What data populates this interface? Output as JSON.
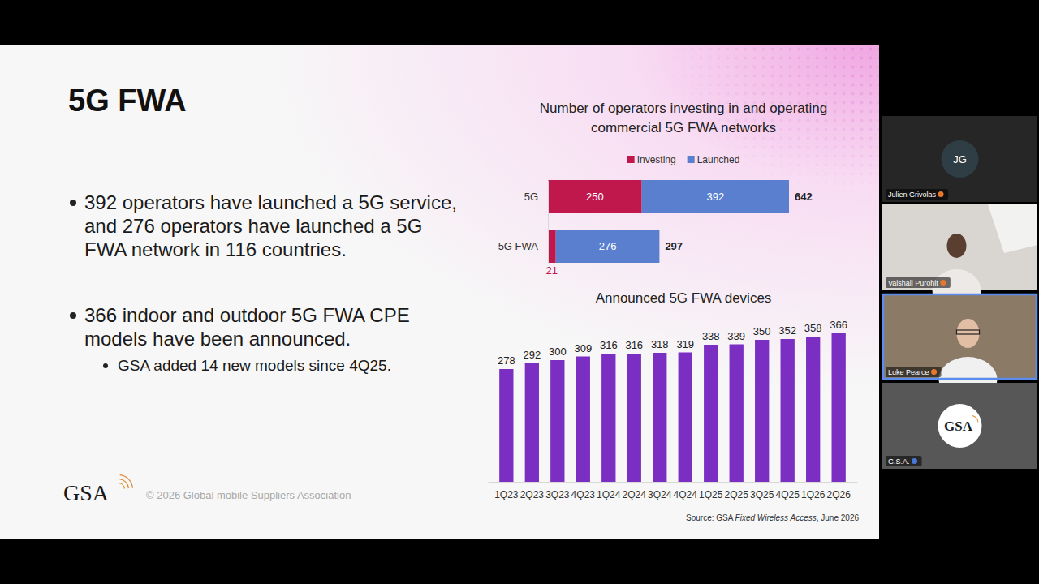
{
  "slide": {
    "title": "5G FWA",
    "bullets": [
      {
        "text": "392 operators have launched a 5G service, and 276 operators have launched a 5G FWA network in 116 countries."
      },
      {
        "text": "366 indoor and outdoor 5G FWA CPE models have been announced.",
        "sub": [
          "GSA added 14 new models since 4Q25."
        ]
      }
    ],
    "logo": "GSA",
    "footer": "© 2026 Global mobile Suppliers Association",
    "source": {
      "prefix": "Source: GSA ",
      "title": "Fixed Wireless Access",
      "suffix": ", June 2026"
    }
  },
  "chart_data": [
    {
      "type": "bar",
      "title": "Number of operators investing in and operating commercial 5G FWA networks",
      "orientation": "horizontal",
      "stacked": true,
      "categories": [
        "5G",
        "5G FWA"
      ],
      "series": [
        {
          "name": "Investing",
          "color": "#c0184c",
          "values": [
            250,
            21
          ]
        },
        {
          "name": "Launched",
          "color": "#5b7fcf",
          "values": [
            392,
            276
          ]
        }
      ],
      "totals": [
        642,
        297
      ],
      "xlim": [
        0,
        642
      ],
      "legend": "top",
      "data_labels": true,
      "tick_labels": "y"
    },
    {
      "type": "bar",
      "title": "Announced 5G FWA devices",
      "categories": [
        "1Q23",
        "2Q23",
        "3Q23",
        "4Q23",
        "1Q24",
        "2Q24",
        "3Q24",
        "4Q24",
        "1Q25",
        "2Q25",
        "3Q25",
        "4Q25",
        "1Q26",
        "2Q26"
      ],
      "values": [
        278,
        292,
        300,
        309,
        316,
        316,
        318,
        319,
        338,
        339,
        350,
        352,
        358,
        366
      ],
      "color": "#7b2fc2",
      "ylim": [
        0,
        366
      ],
      "data_labels": true,
      "tick_labels": "x"
    }
  ],
  "participants": [
    {
      "name": "Julien Grivolas",
      "initials": "JG"
    },
    {
      "name": "Vaishali Purohit"
    },
    {
      "name": "Luke Pearce",
      "active": true
    },
    {
      "name": "G.S.A.",
      "logo": "GSA"
    }
  ]
}
